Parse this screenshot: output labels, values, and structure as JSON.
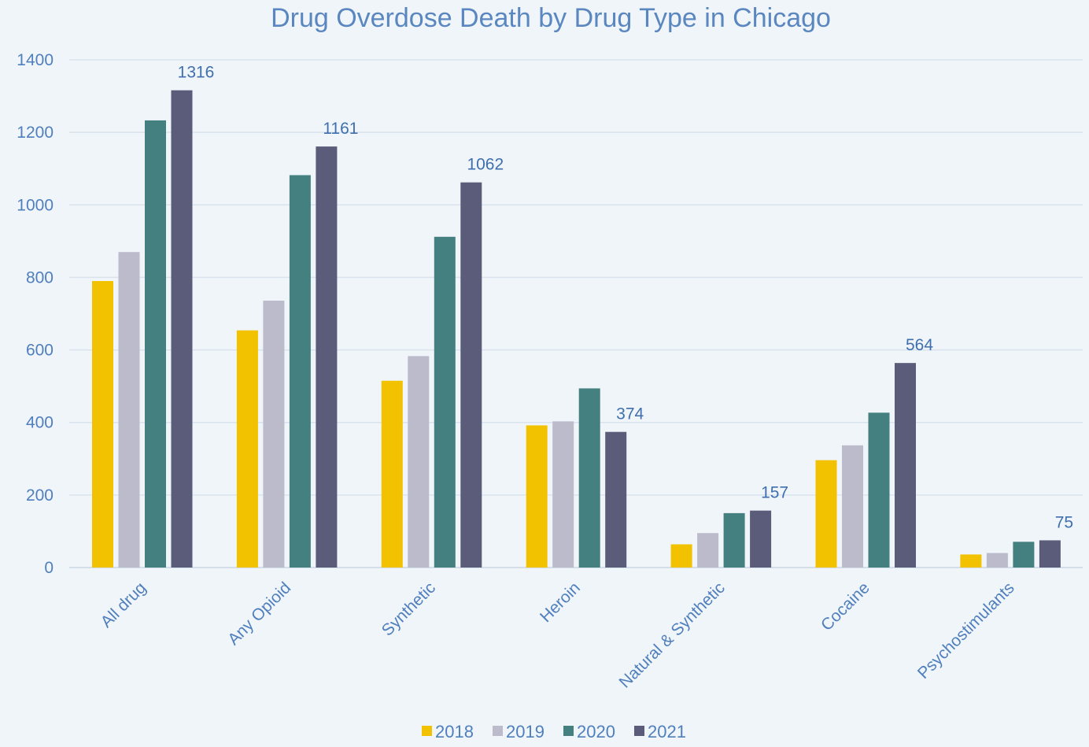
{
  "chart_data": {
    "type": "bar",
    "title": "Drug Overdose Death by Drug Type in Chicago",
    "xlabel": "",
    "ylabel": "",
    "ylim": [
      0,
      1400
    ],
    "yticks": [
      0,
      200,
      400,
      600,
      800,
      1000,
      1200,
      1400
    ],
    "grid": true,
    "legend_position": "bottom",
    "categories": [
      "All drug",
      "Any Opioid",
      "Synthetic",
      "Heroin",
      "Natural & Synthetic",
      "Cocaine",
      "Psychostimulants"
    ],
    "series": [
      {
        "name": "2018",
        "color": "#f2c200",
        "values": [
          790,
          654,
          515,
          392,
          64,
          296,
          36
        ]
      },
      {
        "name": "2019",
        "color": "#bbbbcc",
        "values": [
          870,
          736,
          583,
          403,
          95,
          337,
          40
        ]
      },
      {
        "name": "2020",
        "color": "#458080",
        "values": [
          1233,
          1082,
          912,
          494,
          150,
          427,
          71
        ]
      },
      {
        "name": "2021",
        "color": "#5b5b7a",
        "values": [
          1316,
          1161,
          1062,
          374,
          157,
          564,
          75
        ]
      }
    ],
    "data_labels": {
      "series": "2021",
      "values": [
        "1316",
        "1161",
        "1062",
        "374",
        "157",
        "564",
        "75"
      ]
    }
  }
}
